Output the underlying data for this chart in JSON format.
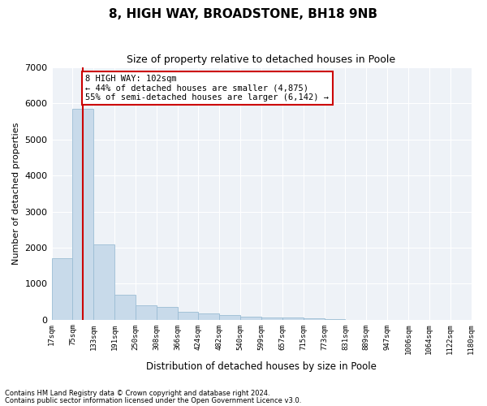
{
  "title1": "8, HIGH WAY, BROADSTONE, BH18 9NB",
  "title2": "Size of property relative to detached houses in Poole",
  "xlabel": "Distribution of detached houses by size in Poole",
  "ylabel": "Number of detached properties",
  "footnote1": "Contains HM Land Registry data © Crown copyright and database right 2024.",
  "footnote2": "Contains public sector information licensed under the Open Government Licence v3.0.",
  "annotation_line1": "8 HIGH WAY: 102sqm",
  "annotation_line2": "← 44% of detached houses are smaller (4,875)",
  "annotation_line3": "55% of semi-detached houses are larger (6,142) →",
  "bar_color": "#c8daea",
  "bar_edge_color": "#9bbdd4",
  "red_line_color": "#cc0000",
  "bin_labels": [
    "17sqm",
    "75sqm",
    "133sqm",
    "191sqm",
    "250sqm",
    "308sqm",
    "366sqm",
    "424sqm",
    "482sqm",
    "540sqm",
    "599sqm",
    "657sqm",
    "715sqm",
    "773sqm",
    "831sqm",
    "889sqm",
    "947sqm",
    "1006sqm",
    "1064sqm",
    "1122sqm",
    "1180sqm"
  ],
  "bar_heights": [
    1700,
    5850,
    2080,
    690,
    390,
    360,
    210,
    180,
    120,
    85,
    70,
    50,
    30,
    8,
    4,
    2,
    1,
    1,
    0,
    0
  ],
  "red_line_x": 1.47,
  "ylim": [
    0,
    7000
  ],
  "yticks": [
    0,
    1000,
    2000,
    3000,
    4000,
    5000,
    6000,
    7000
  ],
  "plot_bg_color": "#eef2f7",
  "grid_color": "#ffffff"
}
